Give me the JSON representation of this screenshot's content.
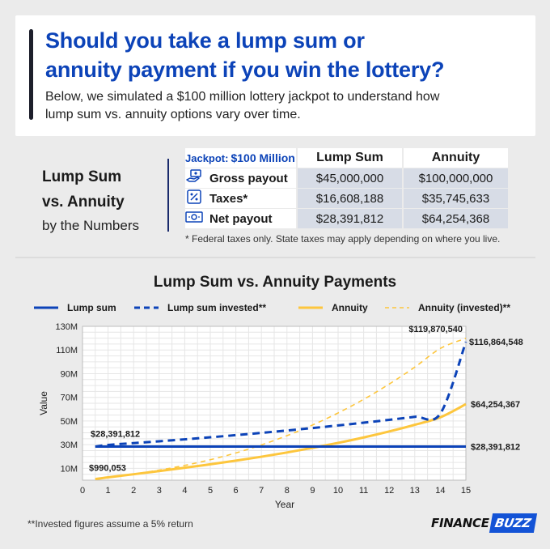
{
  "header": {
    "headline_line1": "Should you take a lump sum or",
    "headline_line2": "annuity payment if you win the lottery?",
    "intro_line1": "Below, we simulated a $100 million lottery jackpot to understand how",
    "intro_line2": "lump sum vs. annuity options vary over time."
  },
  "comparison": {
    "title_line1": "Lump Sum",
    "title_line2": "vs. Annuity",
    "subtitle": "by the Numbers",
    "jackpot_label": "Jackpot:",
    "jackpot_value": "$100 Million",
    "col_lump": "Lump Sum",
    "col_annuity": "Annuity",
    "rows": [
      {
        "label": "Gross payout",
        "icon": "money-hand-icon",
        "lump": "$45,000,000",
        "annuity": "$100,000,000"
      },
      {
        "label": "Taxes*",
        "icon": "percent-tag-icon",
        "lump": "$16,608,188",
        "annuity": "$35,745,633"
      },
      {
        "label": "Net payout",
        "icon": "cash-bill-icon",
        "lump": "$28,391,812",
        "annuity": "$64,254,368"
      }
    ],
    "footnote": "* Federal taxes only. State taxes may apply depending on where you live."
  },
  "chart_data": {
    "type": "line",
    "title": "Lump Sum vs. Annuity Payments",
    "xlabel": "Year",
    "ylabel": "Value",
    "x_ticks": [
      0,
      1,
      2,
      3,
      4,
      5,
      6,
      7,
      8,
      9,
      10,
      11,
      12,
      13,
      14,
      15
    ],
    "y_ticks": [
      10,
      30,
      50,
      70,
      90,
      110,
      130
    ],
    "y_tick_labels": [
      "10M",
      "30M",
      "50M",
      "70M",
      "90M",
      "110M",
      "130M"
    ],
    "xlim": [
      0,
      15
    ],
    "ylim": [
      0,
      130
    ],
    "y_unit": "millions of dollars",
    "grid": true,
    "legend_position": "top",
    "series": [
      {
        "name": "Lump sum",
        "color": "#0c43b8",
        "style": "solid",
        "x": [
          0.5,
          15
        ],
        "y": [
          28.39,
          28.39
        ]
      },
      {
        "name": "Lump sum invested**",
        "color": "#0c43b8",
        "style": "dashed",
        "x": [
          0.5,
          1,
          2,
          3,
          4,
          5,
          6,
          7,
          8,
          9,
          10,
          11,
          12,
          13,
          14,
          15
        ],
        "y": [
          28.39,
          29.81,
          31.3,
          32.87,
          34.51,
          36.24,
          38.05,
          39.95,
          41.95,
          44.05,
          46.25,
          48.56,
          50.99,
          53.54,
          56.22,
          116.86
        ]
      },
      {
        "name": "Annuity",
        "color": "#fdc63d",
        "style": "solid",
        "x": [
          0.5,
          1,
          2,
          3,
          4,
          5,
          6,
          7,
          8,
          9,
          10,
          11,
          12,
          13,
          14,
          15
        ],
        "y": [
          0.99,
          2.4,
          5.0,
          7.7,
          10.5,
          13.4,
          16.5,
          19.8,
          23.4,
          27.3,
          31.5,
          36.1,
          41.2,
          46.8,
          53.1,
          64.25
        ]
      },
      {
        "name": "Annuity (invested)**",
        "color": "#fdc63d",
        "style": "dashed",
        "x": [
          0.5,
          1,
          2,
          3,
          4,
          5,
          6,
          7,
          8,
          9,
          10,
          11,
          12,
          13,
          14,
          15
        ],
        "y": [
          0.99,
          2.4,
          5.2,
          8.5,
          12.5,
          17.3,
          23.0,
          29.8,
          37.6,
          46.6,
          56.8,
          68.3,
          81.2,
          95.5,
          111.3,
          119.87
        ]
      }
    ],
    "annotations": [
      {
        "text": "$28,391,812",
        "x": 0.5,
        "y": 28.39,
        "series": "Lump sum"
      },
      {
        "text": "$28,391,812",
        "x": 15,
        "y": 28.39,
        "series": "Lump sum"
      },
      {
        "text": "$990,053",
        "x": 0.5,
        "y": 0.99,
        "series": "Annuity"
      },
      {
        "text": "$119,870,540",
        "x": 15,
        "y": 119.87,
        "series": "Annuity (invested)**"
      },
      {
        "text": "$116,864,548",
        "x": 15,
        "y": 116.86,
        "series": "Lump sum invested**"
      },
      {
        "text": "$64,254,367",
        "x": 15,
        "y": 64.25,
        "series": "Annuity"
      }
    ]
  },
  "footer": {
    "note": "**Invested figures assume a 5% return",
    "logo_part1": "FINANCE",
    "logo_part2": "BUZZ"
  }
}
